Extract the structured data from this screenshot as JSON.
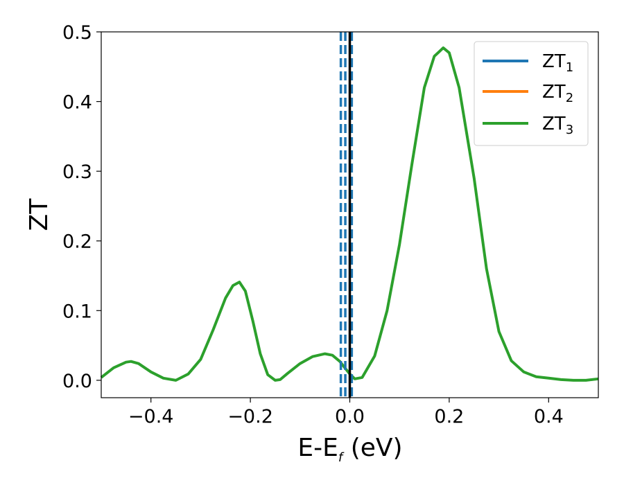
{
  "chart_data": {
    "type": "line",
    "xlabel": {
      "main": "E-E",
      "sub": "f",
      "unit": " (eV)"
    },
    "ylabel": "ZT",
    "xlim": [
      -0.5,
      0.5
    ],
    "ylim": [
      -0.025,
      0.5
    ],
    "xticks": [
      -0.4,
      -0.2,
      0.0,
      0.2,
      0.4
    ],
    "xtick_labels": [
      "−0.4",
      "−0.2",
      "0.0",
      "0.2",
      "0.4"
    ],
    "yticks": [
      0.0,
      0.1,
      0.2,
      0.3,
      0.4,
      0.5
    ],
    "ytick_labels": [
      "0.0",
      "0.1",
      "0.2",
      "0.3",
      "0.4",
      "0.5"
    ],
    "legend_position": "top-right",
    "series": [
      {
        "name": "ZT",
        "sub": "1",
        "color": "#1f77b4"
      },
      {
        "name": "ZT",
        "sub": "2",
        "color": "#ff7f0e"
      },
      {
        "name": "ZT",
        "sub": "3",
        "color": "#2ca02c"
      }
    ],
    "x": [
      -0.5,
      -0.475,
      -0.45,
      -0.44,
      -0.425,
      -0.4,
      -0.375,
      -0.35,
      -0.325,
      -0.3,
      -0.275,
      -0.25,
      -0.235,
      -0.222,
      -0.21,
      -0.195,
      -0.18,
      -0.165,
      -0.15,
      -0.14,
      -0.125,
      -0.1,
      -0.075,
      -0.05,
      -0.035,
      -0.02,
      -0.01,
      0.0,
      0.01,
      0.025,
      0.05,
      0.075,
      0.1,
      0.125,
      0.15,
      0.17,
      0.188,
      0.2,
      0.22,
      0.25,
      0.275,
      0.3,
      0.325,
      0.35,
      0.375,
      0.4,
      0.425,
      0.45,
      0.475,
      0.5
    ],
    "y": [
      0.004,
      0.018,
      0.026,
      0.027,
      0.024,
      0.012,
      0.003,
      0.0,
      0.009,
      0.03,
      0.072,
      0.118,
      0.136,
      0.141,
      0.128,
      0.085,
      0.038,
      0.008,
      0.0,
      0.001,
      0.01,
      0.024,
      0.034,
      0.038,
      0.036,
      0.027,
      0.018,
      0.009,
      0.002,
      0.004,
      0.035,
      0.1,
      0.195,
      0.31,
      0.42,
      0.465,
      0.477,
      0.47,
      0.42,
      0.29,
      0.16,
      0.07,
      0.028,
      0.012,
      0.005,
      0.003,
      0.001,
      0.0,
      0.0,
      0.002
    ],
    "series_drawn": [
      "ZT3"
    ],
    "vlines": [
      {
        "x": -0.018,
        "style": "dashed",
        "color": "#1f77b4"
      },
      {
        "x": -0.009,
        "style": "dashed",
        "color": "#1f77b4"
      },
      {
        "x": 0.004,
        "style": "dashed",
        "color": "#1f77b4"
      },
      {
        "x": 0.0,
        "style": "solid",
        "color": "#000000"
      }
    ]
  }
}
